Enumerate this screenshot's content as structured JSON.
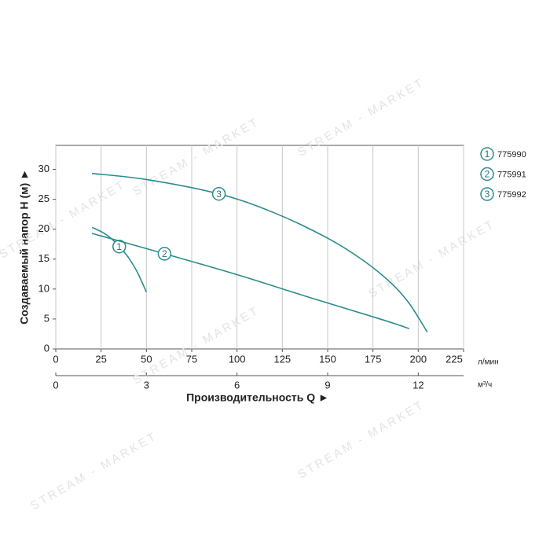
{
  "chart_data": {
    "type": "line",
    "ylabel": "Создаваемый напор H (м) ►",
    "xlabel": "Производительность Q ►",
    "x_unit": "л/мин",
    "x2_unit": "м³/ч",
    "xlim": [
      0,
      225
    ],
    "xticks": [
      0,
      25,
      50,
      75,
      100,
      125,
      150,
      175,
      200,
      225
    ],
    "x2lim": [
      0,
      13.5
    ],
    "x2ticks": [
      0,
      3,
      6,
      9,
      12
    ],
    "ylim": [
      0,
      34
    ],
    "yticks": [
      0,
      5,
      10,
      15,
      20,
      25,
      30
    ],
    "grid": true,
    "watermark": "STREAM - MARKET",
    "series": [
      {
        "name": "775990",
        "label": "1",
        "color": "#2b8c8c",
        "x": [
          20,
          25,
          30,
          35,
          40,
          45,
          50
        ],
        "values": [
          20.3,
          19.6,
          18.6,
          17.1,
          15.3,
          12.8,
          9.5
        ]
      },
      {
        "name": "775991",
        "label": "2",
        "color": "#2b8c8c",
        "x": [
          20,
          60,
          100,
          140,
          180,
          195
        ],
        "values": [
          19.3,
          15.9,
          12.4,
          8.6,
          4.9,
          3.4
        ]
      },
      {
        "name": "775992",
        "label": "3",
        "color": "#2b8c8c",
        "x": [
          20,
          50,
          90,
          120,
          150,
          170,
          185,
          195,
          205
        ],
        "values": [
          29.3,
          28.3,
          25.9,
          22.8,
          18.5,
          14.7,
          11.0,
          7.6,
          2.8
        ]
      }
    ]
  }
}
